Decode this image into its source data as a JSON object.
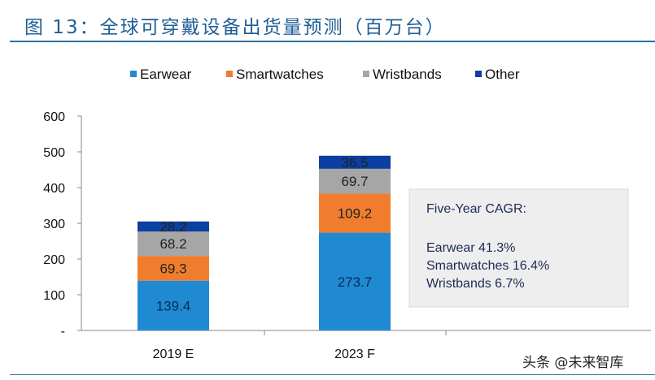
{
  "title": "图 13：全球可穿戴设备出货量预测（百万台）",
  "watermark": "头条 @未来智库",
  "chart_data": {
    "type": "bar",
    "stacked": true,
    "categories": [
      "2019 E",
      "2023 F"
    ],
    "series": [
      {
        "name": "Earwear",
        "values": [
          139.4,
          273.7
        ],
        "labels": [
          "139.4",
          "273.7"
        ],
        "color": "#1f8ad2"
      },
      {
        "name": "Smartwatches",
        "values": [
          69.3,
          109.2
        ],
        "labels": [
          "69.3",
          "109.2"
        ],
        "color": "#f07d2e"
      },
      {
        "name": "Wristbands",
        "values": [
          68.2,
          69.7
        ],
        "labels": [
          "68.2",
          "69.7"
        ],
        "color": "#a6a6a6"
      },
      {
        "name": "Other",
        "values": [
          28.2,
          36.5
        ],
        "labels": [
          "28.2",
          "36.5"
        ],
        "color": "#0b3fa0"
      }
    ],
    "ylim": [
      0,
      600
    ],
    "yticks": [
      "-",
      "100",
      "200",
      "300",
      "400",
      "500",
      "600"
    ],
    "grid": false,
    "legend": "top",
    "annotation": {
      "heading": "Five-Year CAGR:",
      "lines": [
        "Earwear 41.3%",
        "Smartwatches 16.4%",
        "Wristbands 6.7%"
      ]
    }
  }
}
